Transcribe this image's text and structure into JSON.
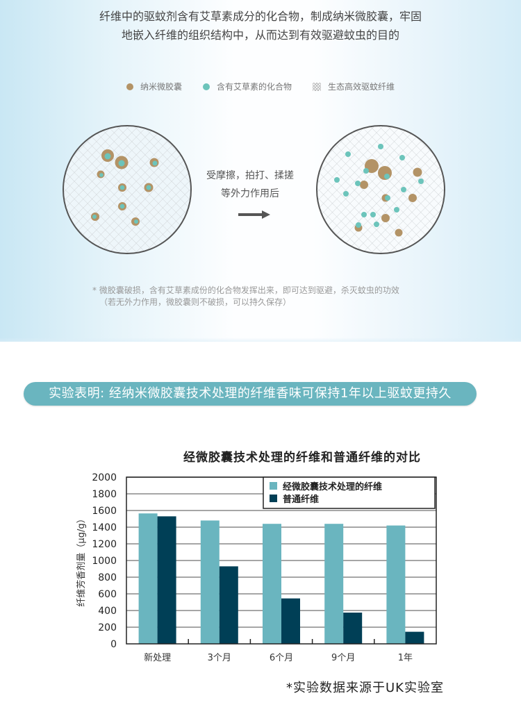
{
  "intro": {
    "line1": "纤维中的驱蚊剂含有艾草素成分的化合物，制成纳米微胶囊，牢固",
    "line2": "地嵌入纤维的组织结构中，从而达到有效驱避蚊虫的目的"
  },
  "legend_top": [
    {
      "label": "纳米微胶囊",
      "icon": "brown-dot-icon",
      "color": "#b39366"
    },
    {
      "label": "含有艾草素的化合物",
      "icon": "teal-dot-icon",
      "color": "#6cc4bb"
    },
    {
      "label": "生态高效驱蚊纤维",
      "icon": "hatch-pattern-icon",
      "color": "#bbbbbb"
    }
  ],
  "action": {
    "line1": "受摩擦，拍打、揉搓",
    "line2": "等外力作用后",
    "icon": "right-arrow-icon"
  },
  "footnote": {
    "line1": "* 微胶囊破损，含有艾草素成份的化合物发挥出来，即可达到驱避，杀灭蚊虫的功效",
    "line2": "（若无外力作用，微胶囊则不破损，可以持久保存）"
  },
  "banner": {
    "text": "实验表明: 经纳米微胶囊技术处理的纤维香味可保持1年以上驱蚊更持久",
    "color": "#6ab5bf"
  },
  "source_note": "*实验数据来源于UK实验室",
  "chart_data": {
    "type": "bar",
    "title": "经微胶囊技术处理的纤维和普通纤维的对比",
    "xlabel": "",
    "ylabel": "纤维芳香剂量（μg/g）",
    "categories": [
      "新处理",
      "3个月",
      "6个月",
      "9个月",
      "1年"
    ],
    "series": [
      {
        "name": "经微胶囊技术处理的纤维",
        "color": "#6ab5bf",
        "values": [
          1565,
          1480,
          1440,
          1440,
          1420
        ]
      },
      {
        "name": "普通纤维",
        "color": "#003f56",
        "values": [
          1530,
          930,
          545,
          375,
          145
        ]
      }
    ],
    "ylim": [
      0,
      2000
    ],
    "yticks": [
      0,
      200,
      400,
      600,
      800,
      1000,
      1200,
      1400,
      1600,
      1800,
      2000
    ],
    "grid": true,
    "legend_position": "top-right"
  }
}
